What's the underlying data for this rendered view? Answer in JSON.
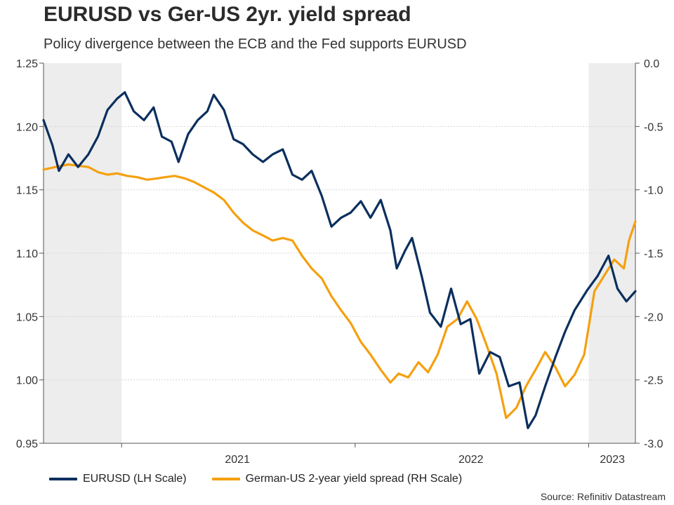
{
  "header": {
    "title": "EURUSD vs Ger-US 2yr. yield spread",
    "subtitle": "Policy divergence between the ECB and the Fed supports EURUSD"
  },
  "footer": {
    "source": "Source: Refinitiv Datastream"
  },
  "chart_data": {
    "type": "line",
    "title": "EURUSD vs Ger-US 2yr. yield spread",
    "subtitle": "Policy divergence between the ECB and the Fed supports EURUSD",
    "x_axis": {
      "type": "date",
      "range": [
        "2020-09-01",
        "2023-03-15"
      ],
      "tick_labels": [
        "2021",
        "2022",
        "2023"
      ],
      "tick_label_dates": [
        "2021-07-01",
        "2022-07-01",
        "2023-02-07"
      ],
      "year_boundaries": [
        "2021-01-01",
        "2022-01-01",
        "2023-01-01"
      ]
    },
    "y_left": {
      "label": "",
      "range": [
        0.95,
        1.25
      ],
      "ticks": [
        "1.25",
        "1.20",
        "1.15",
        "1.10",
        "1.05",
        "1.00",
        "0.95"
      ]
    },
    "y_right": {
      "label": "",
      "range": [
        -3.0,
        0.0
      ],
      "ticks": [
        "0.0",
        "-0.5",
        "-1.0",
        "-1.5",
        "-2.0",
        "-2.5",
        "-3.0"
      ]
    },
    "grid": true,
    "shaded_periods": [
      [
        "2020-09-01",
        "2021-01-01"
      ],
      [
        "2023-01-01",
        "2023-03-15"
      ]
    ],
    "legend_position": "bottom-left",
    "series": [
      {
        "name": "EURUSD (LH Scale)",
        "axis": "left",
        "color": "#0b2f5e",
        "points": [
          [
            "2020-09-01",
            1.205
          ],
          [
            "2020-09-15",
            1.185
          ],
          [
            "2020-09-25",
            1.165
          ],
          [
            "2020-10-10",
            1.178
          ],
          [
            "2020-10-25",
            1.168
          ],
          [
            "2020-11-10",
            1.178
          ],
          [
            "2020-11-25",
            1.192
          ],
          [
            "2020-12-10",
            1.213
          ],
          [
            "2020-12-25",
            1.222
          ],
          [
            "2021-01-06",
            1.227
          ],
          [
            "2021-01-20",
            1.212
          ],
          [
            "2021-02-05",
            1.205
          ],
          [
            "2021-02-20",
            1.215
          ],
          [
            "2021-03-05",
            1.192
          ],
          [
            "2021-03-20",
            1.188
          ],
          [
            "2021-03-31",
            1.172
          ],
          [
            "2021-04-15",
            1.194
          ],
          [
            "2021-04-30",
            1.205
          ],
          [
            "2021-05-15",
            1.212
          ],
          [
            "2021-05-25",
            1.225
          ],
          [
            "2021-06-10",
            1.213
          ],
          [
            "2021-06-25",
            1.19
          ],
          [
            "2021-07-10",
            1.186
          ],
          [
            "2021-07-25",
            1.178
          ],
          [
            "2021-08-10",
            1.172
          ],
          [
            "2021-08-25",
            1.178
          ],
          [
            "2021-09-10",
            1.182
          ],
          [
            "2021-09-25",
            1.162
          ],
          [
            "2021-10-10",
            1.158
          ],
          [
            "2021-10-25",
            1.165
          ],
          [
            "2021-11-10",
            1.145
          ],
          [
            "2021-11-25",
            1.121
          ],
          [
            "2021-12-10",
            1.128
          ],
          [
            "2021-12-25",
            1.132
          ],
          [
            "2022-01-10",
            1.141
          ],
          [
            "2022-01-25",
            1.128
          ],
          [
            "2022-02-10",
            1.142
          ],
          [
            "2022-02-25",
            1.118
          ],
          [
            "2022-03-07",
            1.088
          ],
          [
            "2022-03-20",
            1.102
          ],
          [
            "2022-03-31",
            1.112
          ],
          [
            "2022-04-15",
            1.082
          ],
          [
            "2022-04-28",
            1.053
          ],
          [
            "2022-05-15",
            1.042
          ],
          [
            "2022-05-31",
            1.072
          ],
          [
            "2022-06-15",
            1.044
          ],
          [
            "2022-06-30",
            1.048
          ],
          [
            "2022-07-14",
            1.005
          ],
          [
            "2022-07-31",
            1.022
          ],
          [
            "2022-08-15",
            1.018
          ],
          [
            "2022-08-29",
            0.995
          ],
          [
            "2022-09-15",
            0.998
          ],
          [
            "2022-09-28",
            0.962
          ],
          [
            "2022-10-10",
            0.972
          ],
          [
            "2022-10-25",
            0.995
          ],
          [
            "2022-11-10",
            1.018
          ],
          [
            "2022-11-25",
            1.038
          ],
          [
            "2022-12-10",
            1.055
          ],
          [
            "2022-12-30",
            1.071
          ],
          [
            "2023-01-15",
            1.082
          ],
          [
            "2023-02-01",
            1.098
          ],
          [
            "2023-02-15",
            1.072
          ],
          [
            "2023-03-01",
            1.062
          ],
          [
            "2023-03-15",
            1.07
          ]
        ]
      },
      {
        "name": "German-US 2-year yield spread (RH Scale)",
        "axis": "right",
        "color": "#f5a00f",
        "points": [
          [
            "2020-09-01",
            -0.84
          ],
          [
            "2020-09-20",
            -0.82
          ],
          [
            "2020-10-10",
            -0.8
          ],
          [
            "2020-10-25",
            -0.81
          ],
          [
            "2020-11-10",
            -0.82
          ],
          [
            "2020-11-25",
            -0.86
          ],
          [
            "2020-12-10",
            -0.88
          ],
          [
            "2020-12-25",
            -0.87
          ],
          [
            "2021-01-10",
            -0.89
          ],
          [
            "2021-01-25",
            -0.9
          ],
          [
            "2021-02-10",
            -0.92
          ],
          [
            "2021-02-25",
            -0.91
          ],
          [
            "2021-03-10",
            -0.9
          ],
          [
            "2021-03-25",
            -0.89
          ],
          [
            "2021-04-10",
            -0.91
          ],
          [
            "2021-04-25",
            -0.94
          ],
          [
            "2021-05-10",
            -0.98
          ],
          [
            "2021-05-25",
            -1.02
          ],
          [
            "2021-06-10",
            -1.08
          ],
          [
            "2021-06-25",
            -1.18
          ],
          [
            "2021-07-10",
            -1.26
          ],
          [
            "2021-07-25",
            -1.32
          ],
          [
            "2021-08-10",
            -1.36
          ],
          [
            "2021-08-25",
            -1.4
          ],
          [
            "2021-09-10",
            -1.38
          ],
          [
            "2021-09-25",
            -1.4
          ],
          [
            "2021-10-10",
            -1.52
          ],
          [
            "2021-10-25",
            -1.62
          ],
          [
            "2021-11-10",
            -1.7
          ],
          [
            "2021-11-25",
            -1.84
          ],
          [
            "2021-12-10",
            -1.95
          ],
          [
            "2021-12-25",
            -2.05
          ],
          [
            "2022-01-10",
            -2.2
          ],
          [
            "2022-01-25",
            -2.3
          ],
          [
            "2022-02-10",
            -2.42
          ],
          [
            "2022-02-25",
            -2.52
          ],
          [
            "2022-03-10",
            -2.45
          ],
          [
            "2022-03-25",
            -2.48
          ],
          [
            "2022-04-10",
            -2.36
          ],
          [
            "2022-04-25",
            -2.44
          ],
          [
            "2022-05-10",
            -2.3
          ],
          [
            "2022-05-25",
            -2.08
          ],
          [
            "2022-06-10",
            -2.02
          ],
          [
            "2022-06-25",
            -1.88
          ],
          [
            "2022-07-10",
            -2.02
          ],
          [
            "2022-07-25",
            -2.22
          ],
          [
            "2022-08-10",
            -2.45
          ],
          [
            "2022-08-25",
            -2.8
          ],
          [
            "2022-09-10",
            -2.72
          ],
          [
            "2022-09-25",
            -2.55
          ],
          [
            "2022-10-10",
            -2.42
          ],
          [
            "2022-10-25",
            -2.28
          ],
          [
            "2022-11-10",
            -2.4
          ],
          [
            "2022-11-25",
            -2.55
          ],
          [
            "2022-12-10",
            -2.46
          ],
          [
            "2022-12-25",
            -2.3
          ],
          [
            "2023-01-10",
            -1.8
          ],
          [
            "2023-01-25",
            -1.68
          ],
          [
            "2023-02-10",
            -1.55
          ],
          [
            "2023-02-25",
            -1.62
          ],
          [
            "2023-03-05",
            -1.4
          ],
          [
            "2023-03-15",
            -1.25
          ]
        ]
      }
    ]
  }
}
